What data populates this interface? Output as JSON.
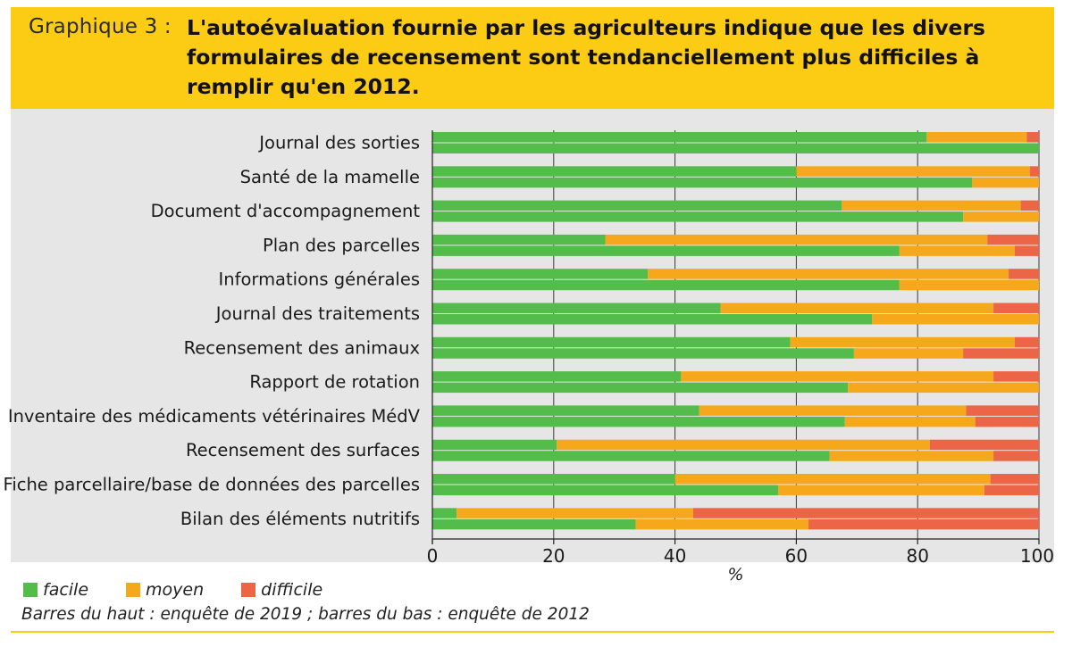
{
  "header": {
    "label": "Graphique 3 :",
    "title": "L'autoévaluation fournie par les agriculteurs indique que les divers formulaires de recensement sont tendanciellement plus difficiles à remplir qu'en 2012."
  },
  "colors": {
    "header_bg": "#fccb14",
    "plot_bg": "#e6e6e6",
    "facile": "#54bc4b",
    "moyen": "#f5a81c",
    "difficile": "#ec6547"
  },
  "legend": {
    "facile": "facile",
    "moyen": "moyen",
    "difficile": "difficile"
  },
  "note": "Barres du haut : enquête de 2019 ; barres du bas : enquête de 2012",
  "chart_data": {
    "type": "bar",
    "orientation": "horizontal",
    "stacked": true,
    "xlabel": "%",
    "xlim": [
      0,
      100
    ],
    "xticks": [
      0,
      20,
      40,
      60,
      80,
      100
    ],
    "grid": "vertical",
    "legend_position": "bottom-left",
    "categories": [
      "Journal des sorties",
      "Santé de la mamelle",
      "Document d'accompagnement",
      "Plan des parcelles",
      "Informations générales",
      "Journal des traitements",
      "Recensement des animaux",
      "Rapport de rotation",
      "Inventaire des médicaments vétérinaires MédV",
      "Recensement des surfaces",
      "Fiche parcellaire/base de données des parcelles",
      "Bilan des éléments nutritifs"
    ],
    "years": [
      "2019",
      "2012"
    ],
    "series": [
      {
        "name": "facile",
        "values_2019": [
          81.5,
          60,
          67.5,
          28.5,
          35.5,
          47.5,
          59,
          41,
          44,
          20.5,
          40,
          4
        ],
        "values_2012": [
          100,
          89,
          87.5,
          77,
          77,
          72.5,
          69.5,
          68.5,
          68,
          65.5,
          57,
          33.5
        ]
      },
      {
        "name": "moyen",
        "values_2019": [
          16.5,
          38.5,
          29.5,
          63,
          59.5,
          45,
          37,
          51.5,
          44,
          61.5,
          52,
          39
        ],
        "values_2012": [
          0,
          11,
          12.5,
          19,
          23,
          27.5,
          18,
          31.5,
          21.5,
          27,
          34,
          28.5
        ]
      },
      {
        "name": "difficile",
        "values_2019": [
          2,
          1.5,
          3,
          8.5,
          5,
          7.5,
          4,
          7.5,
          12,
          18,
          8,
          57
        ],
        "values_2012": [
          0,
          0,
          0,
          4,
          0,
          0,
          12.5,
          0,
          10.5,
          7.5,
          9,
          38
        ]
      }
    ]
  }
}
